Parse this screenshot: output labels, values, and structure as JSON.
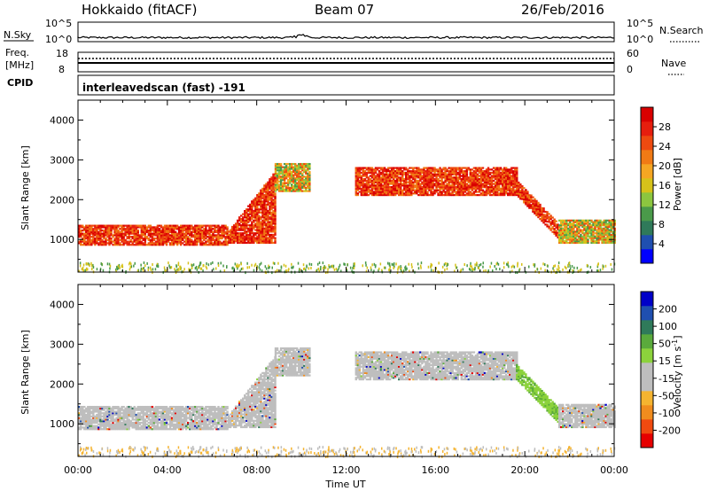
{
  "header": {
    "station": "Hokkaido (fitACF)",
    "beam": "Beam 07",
    "date": "26/Feb/2016"
  },
  "top_panels": {
    "nsky": {
      "label": "N.Sky",
      "ticks": [
        "10^5",
        "10^0"
      ],
      "right_label": "N.Search",
      "right_ticks": [
        "10^5",
        "10^0"
      ]
    },
    "freq": {
      "label_line1": "Freq.",
      "label_line2": "[MHz]",
      "ticks": [
        "18",
        "8"
      ],
      "right_label": "Nave",
      "right_ticks": [
        "60",
        "0"
      ]
    },
    "cpid": {
      "label": "CPID",
      "program": "interleavedscan (fast) -191"
    }
  },
  "chart_data": [
    {
      "type": "heatmap",
      "name": "power",
      "ylabel": "Slant Range [km]",
      "ylim": [
        180,
        4500
      ],
      "yticks": [
        "4000",
        "3000",
        "2000",
        "1000"
      ],
      "xlim": [
        0,
        24
      ],
      "colorbar": {
        "label": "Power [dB]",
        "ticks": [
          "28",
          "24",
          "20",
          "16",
          "12",
          "8",
          "4"
        ],
        "colors": [
          "#0000ff",
          "#1f4fb0",
          "#2f7a5a",
          "#4a9a4a",
          "#8cc63f",
          "#d6c21a",
          "#f5a623",
          "#f07a15",
          "#ee4a10",
          "#e61e0e",
          "#d90000"
        ]
      },
      "bands": [
        {
          "t": [
            0,
            6.7
          ],
          "r0": 850,
          "r1": 1350,
          "level": "high"
        },
        {
          "t": [
            6.7,
            8.8
          ],
          "r0": 900,
          "r1": 1700,
          "level": "high"
        },
        {
          "t": [
            8.8,
            10.4
          ],
          "r0": 2200,
          "r1": 2900,
          "level": "mid"
        },
        {
          "t": [
            12.4,
            19.6
          ],
          "r0": 2100,
          "r1": 2800,
          "level": "high"
        },
        {
          "t": [
            19.6,
            21.5
          ],
          "r0": 1000,
          "r1": 2400,
          "level": "high"
        },
        {
          "t": [
            21.5,
            24
          ],
          "r0": 900,
          "r1": 1500,
          "level": "mid"
        }
      ]
    },
    {
      "type": "heatmap",
      "name": "velocity",
      "ylabel": "Slant Range [km]",
      "ylim": [
        180,
        4500
      ],
      "yticks": [
        "4000",
        "3000",
        "2000",
        "1000"
      ],
      "xlim": [
        0,
        24
      ],
      "xticks": [
        "00:00",
        "04:00",
        "08:00",
        "12:00",
        "16:00",
        "20:00",
        "00:00"
      ],
      "xlabel": "Time UT",
      "colorbar": {
        "label": "Velocity [m s-1]",
        "ticks": [
          "200",
          "100",
          "50",
          "15",
          "-15",
          "-50",
          "-100",
          "-200"
        ],
        "colors": [
          "#e60000",
          "#f04a10",
          "#f08c1e",
          "#f5b430",
          "#bebebe",
          "#bebebe",
          "#8cd23c",
          "#5aaa3c",
          "#2f7a5a",
          "#1f4fb0",
          "#0000c8"
        ]
      },
      "bands": [
        {
          "t": [
            0,
            6.7
          ],
          "r0": 850,
          "r1": 1450,
          "level": "ground"
        },
        {
          "t": [
            6.7,
            8.8
          ],
          "r0": 900,
          "r1": 1700,
          "level": "ground"
        },
        {
          "t": [
            8.8,
            10.4
          ],
          "r0": 2200,
          "r1": 2900,
          "level": "ground"
        },
        {
          "t": [
            12.4,
            19.6
          ],
          "r0": 2100,
          "r1": 2800,
          "level": "ground"
        },
        {
          "t": [
            19.6,
            21.5
          ],
          "r0": 1000,
          "r1": 2400,
          "level": "positive"
        },
        {
          "t": [
            21.5,
            24
          ],
          "r0": 900,
          "r1": 1500,
          "level": "ground"
        }
      ]
    }
  ]
}
